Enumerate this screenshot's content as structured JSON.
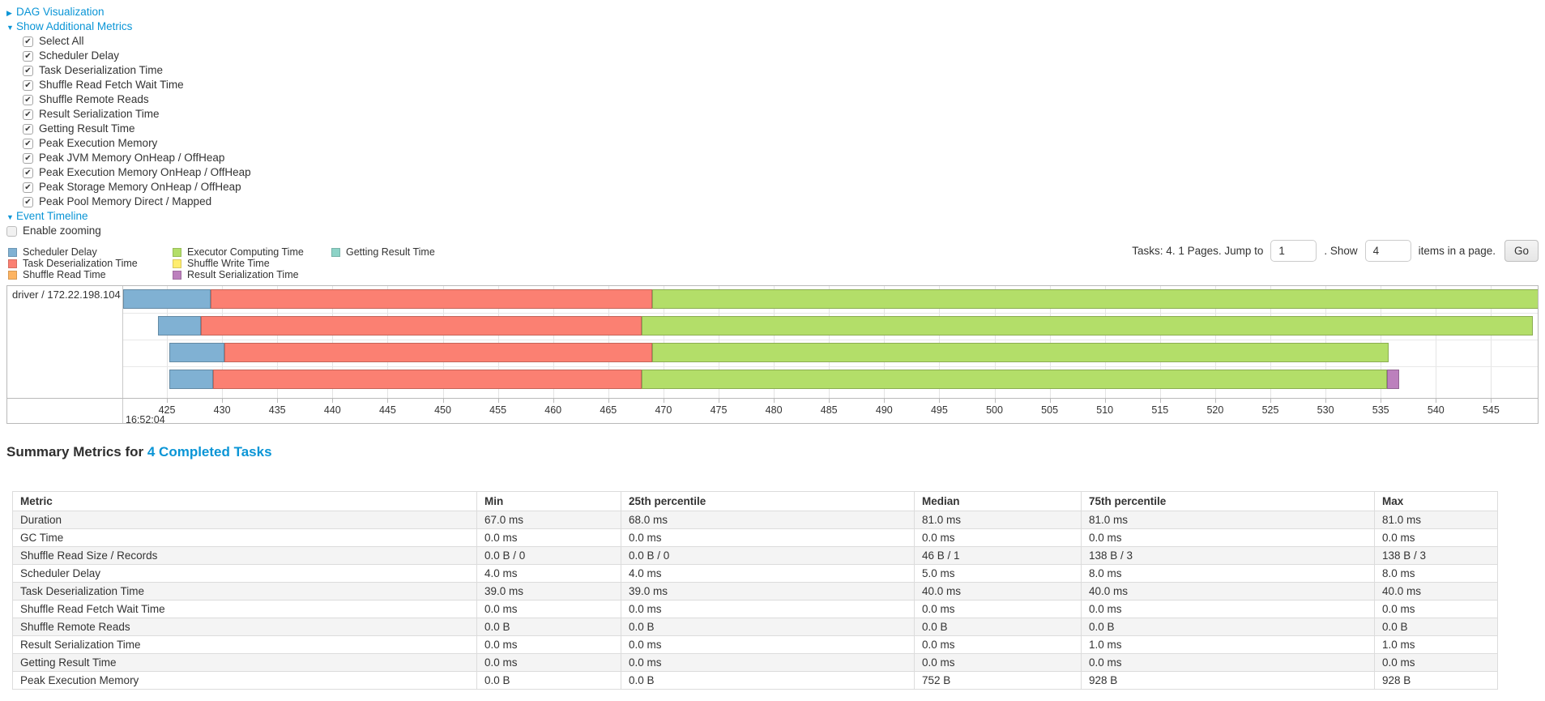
{
  "colors": {
    "link": "#0a95d6",
    "scheduler_delay": "#80B1D3",
    "task_deserialization": "#FB8072",
    "shuffle_read": "#FDB462",
    "executor_computing": "#B3DE69",
    "shuffle_write": "#FFED6F",
    "result_serialization": "#BC80BD",
    "getting_result": "#8DD3C7"
  },
  "icons": {
    "collapsed_arrow": "▶",
    "expanded_arrow": "▼",
    "check_glyph": "✔"
  },
  "controls": {
    "dag": {
      "label": "DAG Visualization",
      "state": "collapsed"
    },
    "additional_metrics": {
      "label": "Show Additional Metrics",
      "state": "expanded"
    },
    "metric_checkboxes": [
      {
        "label": "Select All",
        "checked": true
      },
      {
        "label": "Scheduler Delay",
        "checked": true
      },
      {
        "label": "Task Deserialization Time",
        "checked": true
      },
      {
        "label": "Shuffle Read Fetch Wait Time",
        "checked": true
      },
      {
        "label": "Shuffle Remote Reads",
        "checked": true
      },
      {
        "label": "Result Serialization Time",
        "checked": true
      },
      {
        "label": "Getting Result Time",
        "checked": true
      },
      {
        "label": "Peak Execution Memory",
        "checked": true
      },
      {
        "label": "Peak JVM Memory OnHeap / OffHeap",
        "checked": true
      },
      {
        "label": "Peak Execution Memory OnHeap / OffHeap",
        "checked": true
      },
      {
        "label": "Peak Storage Memory OnHeap / OffHeap",
        "checked": true
      },
      {
        "label": "Peak Pool Memory Direct / Mapped",
        "checked": true
      }
    ],
    "event_timeline": {
      "label": "Event Timeline",
      "state": "expanded"
    },
    "enable_zooming": {
      "label": "Enable zooming",
      "checked": false
    }
  },
  "legend": {
    "columns": [
      [
        {
          "label": "Scheduler Delay",
          "type": "scheduler_delay"
        },
        {
          "label": "Task Deserialization Time",
          "type": "task_deserialization"
        },
        {
          "label": "Shuffle Read Time",
          "type": "shuffle_read"
        }
      ],
      [
        {
          "label": "Executor Computing Time",
          "type": "executor_computing"
        },
        {
          "label": "Shuffle Write Time",
          "type": "shuffle_write"
        },
        {
          "label": "Result Serialization Time",
          "type": "result_serialization"
        }
      ],
      [
        {
          "label": "Getting Result Time",
          "type": "getting_result"
        }
      ]
    ]
  },
  "pagination": {
    "summary": "Tasks: 4. 1 Pages. Jump to",
    "jump_value": "1",
    "show_label": ". Show",
    "show_value": "4",
    "items_label": "items in a page.",
    "go_label": "Go"
  },
  "timeline": {
    "group_label": "driver / 172.22.198.104",
    "axis": {
      "start": 425,
      "end": 550,
      "step": 5,
      "base_time_label": "16:52:04"
    },
    "tasks": [
      {
        "segments": [
          {
            "type": "scheduler_delay",
            "start": 421.0,
            "end": 429.0
          },
          {
            "type": "task_deserialization",
            "start": 429.0,
            "end": 469.0
          },
          {
            "type": "executor_computing",
            "start": 469.0,
            "end": 549.4
          }
        ]
      },
      {
        "segments": [
          {
            "type": "scheduler_delay",
            "start": 424.2,
            "end": 428.1
          },
          {
            "type": "task_deserialization",
            "start": 428.1,
            "end": 468.0
          },
          {
            "type": "executor_computing",
            "start": 468.0,
            "end": 548.8
          }
        ]
      },
      {
        "segments": [
          {
            "type": "scheduler_delay",
            "start": 425.2,
            "end": 430.2
          },
          {
            "type": "task_deserialization",
            "start": 430.2,
            "end": 469.0
          },
          {
            "type": "executor_computing",
            "start": 469.0,
            "end": 535.7
          }
        ]
      },
      {
        "segments": [
          {
            "type": "scheduler_delay",
            "start": 425.2,
            "end": 429.2
          },
          {
            "type": "task_deserialization",
            "start": 429.2,
            "end": 468.0
          },
          {
            "type": "executor_computing",
            "start": 468.0,
            "end": 535.6
          },
          {
            "type": "result_serialization",
            "start": 535.6,
            "end": 536.7
          }
        ]
      }
    ]
  },
  "summary": {
    "heading": "Summary Metrics for",
    "tasks_link": "4 Completed Tasks"
  },
  "summary_table": {
    "headers": [
      "Metric",
      "Min",
      "25th percentile",
      "Median",
      "75th percentile",
      "Max"
    ],
    "rows": [
      [
        "Duration",
        "67.0 ms",
        "68.0 ms",
        "81.0 ms",
        "81.0 ms",
        "81.0 ms"
      ],
      [
        "GC Time",
        "0.0 ms",
        "0.0 ms",
        "0.0 ms",
        "0.0 ms",
        "0.0 ms"
      ],
      [
        "Shuffle Read Size / Records",
        "0.0 B / 0",
        "0.0 B / 0",
        "46 B / 1",
        "138 B / 3",
        "138 B / 3"
      ],
      [
        "Scheduler Delay",
        "4.0 ms",
        "4.0 ms",
        "5.0 ms",
        "8.0 ms",
        "8.0 ms"
      ],
      [
        "Task Deserialization Time",
        "39.0 ms",
        "39.0 ms",
        "40.0 ms",
        "40.0 ms",
        "40.0 ms"
      ],
      [
        "Shuffle Read Fetch Wait Time",
        "0.0 ms",
        "0.0 ms",
        "0.0 ms",
        "0.0 ms",
        "0.0 ms"
      ],
      [
        "Shuffle Remote Reads",
        "0.0 B",
        "0.0 B",
        "0.0 B",
        "0.0 B",
        "0.0 B"
      ],
      [
        "Result Serialization Time",
        "0.0 ms",
        "0.0 ms",
        "0.0 ms",
        "1.0 ms",
        "1.0 ms"
      ],
      [
        "Getting Result Time",
        "0.0 ms",
        "0.0 ms",
        "0.0 ms",
        "0.0 ms",
        "0.0 ms"
      ],
      [
        "Peak Execution Memory",
        "0.0 B",
        "0.0 B",
        "752 B",
        "928 B",
        "928 B"
      ]
    ]
  }
}
